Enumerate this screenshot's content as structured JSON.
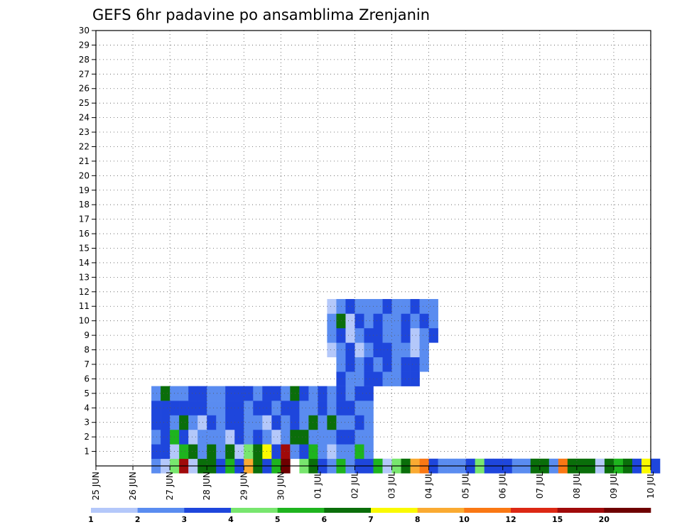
{
  "chart_data": {
    "type": "heatmap",
    "title": "GEFS 6hr padavine po ansamblima Zrenjanin",
    "xlabel": "",
    "ylabel": "",
    "x_tick_labels": [
      "25 JUN",
      "26 JUN",
      "27 JUN",
      "28 JUN",
      "29 JUN",
      "30 JUN",
      "01 JUL",
      "02 JUL",
      "03 JUL",
      "04 JUL",
      "05 JUL",
      "06 JUL",
      "07 JUL",
      "08 JUL",
      "09 JUL",
      "10 JUL"
    ],
    "y_ticks": [
      1,
      2,
      3,
      4,
      5,
      6,
      7,
      8,
      9,
      10,
      11,
      12,
      13,
      14,
      15,
      16,
      17,
      18,
      19,
      20,
      21,
      22,
      23,
      24,
      25,
      26,
      27,
      28,
      29,
      30
    ],
    "y_range": [
      0,
      30
    ],
    "x_steps_per_day": 4,
    "grid": true,
    "colorbar": {
      "labels": [
        "1",
        "2",
        "3",
        "4",
        "5",
        "6",
        "7",
        "8",
        "10",
        "12",
        "15",
        "20"
      ],
      "colors": [
        "#b4c8fa",
        "#5a8cf0",
        "#1e46dc",
        "#78e66e",
        "#1eb41e",
        "#0a6e0a",
        "#fafa00",
        "#faaa32",
        "#fa7814",
        "#dc2814",
        "#a00a0a",
        "#6e0000"
      ]
    },
    "cells": [
      [
        0,
        6,
        1
      ],
      [
        0,
        7,
        0
      ],
      [
        0,
        8,
        3
      ],
      [
        0,
        9,
        10
      ],
      [
        0,
        10,
        0
      ],
      [
        0,
        11,
        5
      ],
      [
        0,
        12,
        5
      ],
      [
        0,
        13,
        2
      ],
      [
        0,
        14,
        4
      ],
      [
        0,
        15,
        2
      ],
      [
        0,
        16,
        7
      ],
      [
        0,
        17,
        5
      ],
      [
        0,
        18,
        2
      ],
      [
        0,
        19,
        4
      ],
      [
        0,
        20,
        11
      ],
      [
        0,
        22,
        3
      ],
      [
        0,
        23,
        5
      ],
      [
        0,
        24,
        2
      ],
      [
        0,
        25,
        1
      ],
      [
        0,
        26,
        4
      ],
      [
        0,
        27,
        1
      ],
      [
        0,
        28,
        2
      ],
      [
        0,
        29,
        2
      ],
      [
        0,
        30,
        4
      ],
      [
        0,
        31,
        0
      ],
      [
        0,
        32,
        3
      ],
      [
        0,
        33,
        5
      ],
      [
        0,
        34,
        7
      ],
      [
        0,
        35,
        8
      ],
      [
        0,
        36,
        2
      ],
      [
        0,
        37,
        1
      ],
      [
        0,
        38,
        1
      ],
      [
        0,
        39,
        1
      ],
      [
        0,
        40,
        2
      ],
      [
        0,
        41,
        3
      ],
      [
        0,
        42,
        2
      ],
      [
        0,
        43,
        2
      ],
      [
        0,
        44,
        2
      ],
      [
        0,
        45,
        1
      ],
      [
        0,
        46,
        1
      ],
      [
        0,
        47,
        5
      ],
      [
        0,
        48,
        5
      ],
      [
        0,
        49,
        1
      ],
      [
        0,
        50,
        8
      ],
      [
        0,
        51,
        5
      ],
      [
        0,
        52,
        5
      ],
      [
        0,
        53,
        5
      ],
      [
        0,
        54,
        0
      ],
      [
        0,
        55,
        5
      ],
      [
        0,
        56,
        4
      ],
      [
        0,
        57,
        5
      ],
      [
        0,
        58,
        2
      ],
      [
        0,
        59,
        6
      ],
      [
        0,
        60,
        2
      ],
      [
        1,
        6,
        2
      ],
      [
        1,
        7,
        2
      ],
      [
        1,
        8,
        0
      ],
      [
        1,
        9,
        4
      ],
      [
        1,
        10,
        5
      ],
      [
        1,
        11,
        1
      ],
      [
        1,
        12,
        5
      ],
      [
        1,
        13,
        1
      ],
      [
        1,
        14,
        5
      ],
      [
        1,
        15,
        0
      ],
      [
        1,
        16,
        3
      ],
      [
        1,
        17,
        5
      ],
      [
        1,
        18,
        6
      ],
      [
        1,
        19,
        2
      ],
      [
        1,
        20,
        10
      ],
      [
        1,
        21,
        1
      ],
      [
        1,
        22,
        2
      ],
      [
        1,
        23,
        4
      ],
      [
        1,
        24,
        1
      ],
      [
        1,
        25,
        0
      ],
      [
        1,
        26,
        1
      ],
      [
        1,
        27,
        1
      ],
      [
        1,
        28,
        4
      ],
      [
        1,
        29,
        1
      ],
      [
        2,
        6,
        1
      ],
      [
        2,
        7,
        2
      ],
      [
        2,
        8,
        4
      ],
      [
        2,
        9,
        2
      ],
      [
        2,
        10,
        0
      ],
      [
        2,
        11,
        1
      ],
      [
        2,
        12,
        1
      ],
      [
        2,
        13,
        1
      ],
      [
        2,
        14,
        0
      ],
      [
        2,
        15,
        2
      ],
      [
        2,
        16,
        1
      ],
      [
        2,
        17,
        2
      ],
      [
        2,
        18,
        1
      ],
      [
        2,
        19,
        0
      ],
      [
        2,
        20,
        1
      ],
      [
        2,
        21,
        5
      ],
      [
        2,
        22,
        5
      ],
      [
        2,
        23,
        1
      ],
      [
        2,
        24,
        1
      ],
      [
        2,
        25,
        1
      ],
      [
        2,
        26,
        2
      ],
      [
        2,
        27,
        2
      ],
      [
        2,
        28,
        1
      ],
      [
        2,
        29,
        1
      ],
      [
        3,
        6,
        2
      ],
      [
        3,
        7,
        2
      ],
      [
        3,
        8,
        1
      ],
      [
        3,
        9,
        5
      ],
      [
        3,
        10,
        1
      ],
      [
        3,
        11,
        0
      ],
      [
        3,
        12,
        2
      ],
      [
        3,
        13,
        1
      ],
      [
        3,
        14,
        2
      ],
      [
        3,
        15,
        2
      ],
      [
        3,
        16,
        1
      ],
      [
        3,
        17,
        1
      ],
      [
        3,
        18,
        0
      ],
      [
        3,
        19,
        2
      ],
      [
        3,
        20,
        1
      ],
      [
        3,
        21,
        2
      ],
      [
        3,
        22,
        1
      ],
      [
        3,
        23,
        5
      ],
      [
        3,
        24,
        1
      ],
      [
        3,
        25,
        5
      ],
      [
        3,
        26,
        1
      ],
      [
        3,
        27,
        1
      ],
      [
        3,
        28,
        2
      ],
      [
        3,
        29,
        1
      ],
      [
        4,
        6,
        2
      ],
      [
        4,
        7,
        2
      ],
      [
        4,
        8,
        2
      ],
      [
        4,
        9,
        2
      ],
      [
        4,
        10,
        2
      ],
      [
        4,
        11,
        2
      ],
      [
        4,
        12,
        1
      ],
      [
        4,
        13,
        1
      ],
      [
        4,
        14,
        2
      ],
      [
        4,
        15,
        2
      ],
      [
        4,
        16,
        1
      ],
      [
        4,
        17,
        2
      ],
      [
        4,
        18,
        2
      ],
      [
        4,
        19,
        1
      ],
      [
        4,
        20,
        2
      ],
      [
        4,
        21,
        2
      ],
      [
        4,
        22,
        1
      ],
      [
        4,
        23,
        1
      ],
      [
        4,
        24,
        2
      ],
      [
        4,
        25,
        1
      ],
      [
        4,
        26,
        2
      ],
      [
        4,
        27,
        2
      ],
      [
        4,
        28,
        1
      ],
      [
        4,
        29,
        1
      ],
      [
        5,
        6,
        1
      ],
      [
        5,
        7,
        5
      ],
      [
        5,
        8,
        1
      ],
      [
        5,
        9,
        1
      ],
      [
        5,
        10,
        2
      ],
      [
        5,
        11,
        2
      ],
      [
        5,
        12,
        1
      ],
      [
        5,
        13,
        1
      ],
      [
        5,
        14,
        2
      ],
      [
        5,
        15,
        2
      ],
      [
        5,
        16,
        2
      ],
      [
        5,
        17,
        1
      ],
      [
        5,
        18,
        2
      ],
      [
        5,
        19,
        2
      ],
      [
        5,
        20,
        1
      ],
      [
        5,
        21,
        5
      ],
      [
        5,
        22,
        2
      ],
      [
        5,
        23,
        1
      ],
      [
        5,
        24,
        2
      ],
      [
        5,
        25,
        1
      ],
      [
        5,
        26,
        2
      ],
      [
        5,
        27,
        1
      ],
      [
        5,
        28,
        2
      ],
      [
        5,
        29,
        2
      ],
      [
        6,
        26,
        2
      ],
      [
        6,
        27,
        1
      ],
      [
        6,
        28,
        1
      ],
      [
        6,
        29,
        2
      ],
      [
        6,
        30,
        2
      ],
      [
        6,
        31,
        1
      ],
      [
        6,
        32,
        1
      ],
      [
        6,
        33,
        2
      ],
      [
        6,
        34,
        2
      ],
      [
        7,
        26,
        1
      ],
      [
        7,
        27,
        2
      ],
      [
        7,
        28,
        1
      ],
      [
        7,
        29,
        2
      ],
      [
        7,
        30,
        1
      ],
      [
        7,
        31,
        2
      ],
      [
        7,
        32,
        1
      ],
      [
        7,
        33,
        2
      ],
      [
        7,
        34,
        2
      ],
      [
        7,
        35,
        1
      ],
      [
        8,
        25,
        0
      ],
      [
        8,
        26,
        1
      ],
      [
        8,
        27,
        2
      ],
      [
        8,
        28,
        0
      ],
      [
        8,
        29,
        1
      ],
      [
        8,
        30,
        2
      ],
      [
        8,
        31,
        2
      ],
      [
        8,
        32,
        1
      ],
      [
        8,
        33,
        1
      ],
      [
        8,
        34,
        0
      ],
      [
        8,
        35,
        1
      ],
      [
        9,
        25,
        1
      ],
      [
        9,
        26,
        2
      ],
      [
        9,
        27,
        0
      ],
      [
        9,
        28,
        1
      ],
      [
        9,
        29,
        2
      ],
      [
        9,
        30,
        2
      ],
      [
        9,
        31,
        1
      ],
      [
        9,
        32,
        1
      ],
      [
        9,
        33,
        2
      ],
      [
        9,
        34,
        0
      ],
      [
        9,
        35,
        1
      ],
      [
        9,
        36,
        2
      ],
      [
        10,
        25,
        1
      ],
      [
        10,
        26,
        5
      ],
      [
        10,
        27,
        0
      ],
      [
        10,
        28,
        2
      ],
      [
        10,
        29,
        1
      ],
      [
        10,
        30,
        2
      ],
      [
        10,
        31,
        1
      ],
      [
        10,
        32,
        1
      ],
      [
        10,
        33,
        2
      ],
      [
        10,
        34,
        1
      ],
      [
        10,
        35,
        2
      ],
      [
        10,
        36,
        1
      ],
      [
        11,
        25,
        0
      ],
      [
        11,
        26,
        1
      ],
      [
        11,
        27,
        2
      ],
      [
        11,
        28,
        1
      ],
      [
        11,
        29,
        1
      ],
      [
        11,
        30,
        1
      ],
      [
        11,
        31,
        2
      ],
      [
        11,
        32,
        1
      ],
      [
        11,
        33,
        1
      ],
      [
        11,
        34,
        2
      ],
      [
        11,
        35,
        1
      ],
      [
        11,
        36,
        1
      ]
    ]
  }
}
